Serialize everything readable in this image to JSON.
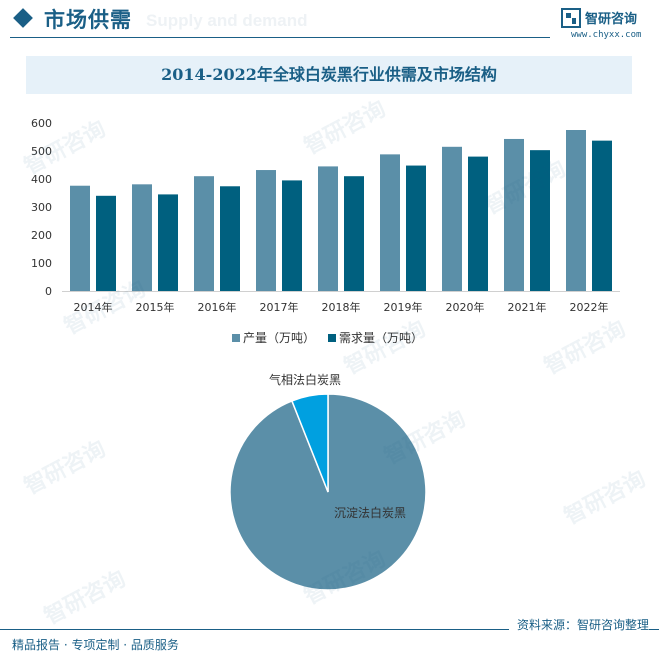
{
  "header": {
    "title": "市场供需",
    "ghost_text": "Supply and demand",
    "brand_name": "智研咨询",
    "brand_url": "www.chyxx.com"
  },
  "watermark": {
    "logo_text": "智研咨询"
  },
  "footer": {
    "left": "精品报告 · 专项定制 · 品质服务",
    "right": "资料来源：智研咨询整理"
  },
  "colors": {
    "primary": "#1a5f86",
    "supply": "#5b8fa8",
    "demand": "#00607f",
    "pie_main": "#5b8fa8",
    "pie_minor": "#00a0e0"
  },
  "chart_data": [
    {
      "type": "bar",
      "title": "2014-2022年全球白炭黑行业供需及市场结构",
      "categories": [
        "2014年",
        "2015年",
        "2016年",
        "2017年",
        "2018年",
        "2019年",
        "2020年",
        "2021年",
        "2022年"
      ],
      "series": [
        {
          "name": "产量（万吨）",
          "color": "#5b8fa8",
          "values": [
            376,
            381,
            410,
            432,
            445,
            488,
            515,
            543,
            575
          ]
        },
        {
          "name": "需求量（万吨）",
          "color": "#00607f",
          "values": [
            340,
            345,
            374,
            395,
            410,
            448,
            480,
            503,
            537
          ]
        }
      ],
      "ylim": [
        0,
        600
      ],
      "yticks": [
        0,
        100,
        200,
        300,
        400,
        500,
        600
      ],
      "grid": false,
      "legend": "bottom"
    },
    {
      "type": "pie",
      "labels": [
        "沉淀法白炭黑",
        "气相法白炭黑"
      ],
      "values": [
        94,
        6
      ],
      "colors": [
        "#5b8fa8",
        "#00a0e0"
      ]
    }
  ]
}
